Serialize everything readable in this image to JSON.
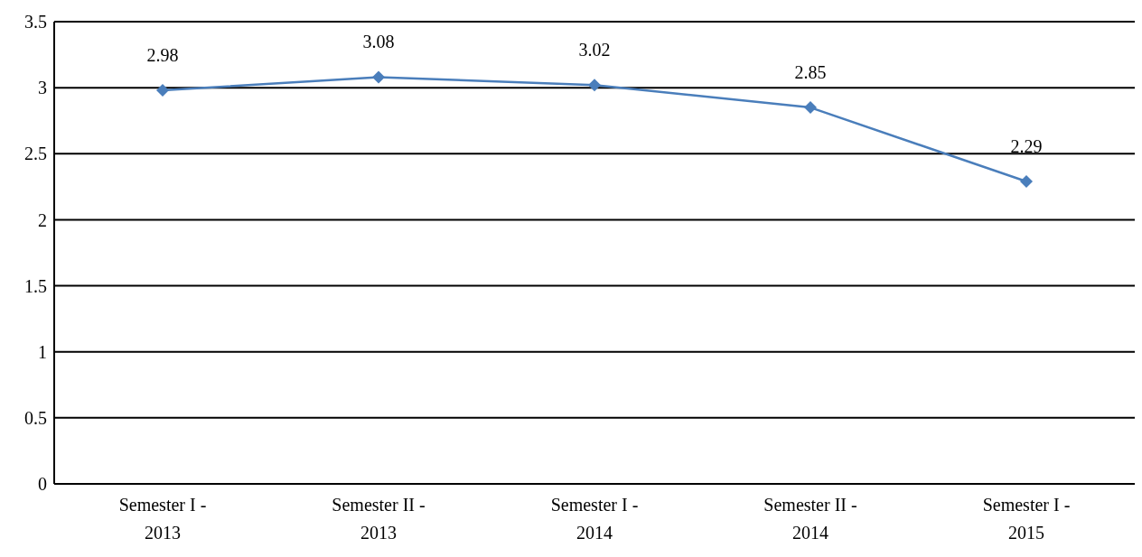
{
  "chart_data": {
    "type": "line",
    "categories": [
      "Semester I - 2013",
      "Semester II - 2013",
      "Semester I - 2014",
      "Semester II - 2014",
      "Semester I - 2015"
    ],
    "series": [
      {
        "color": "#4a7ebb",
        "values": [
          2.98,
          3.08,
          3.02,
          2.85,
          2.29
        ]
      }
    ],
    "ylim": [
      0,
      3.5
    ],
    "yticks": [
      0,
      0.5,
      1,
      1.5,
      2,
      2.5,
      3,
      3.5
    ],
    "grid": "y",
    "data_labels": true,
    "marker": "diamond",
    "line_style": "solid"
  }
}
